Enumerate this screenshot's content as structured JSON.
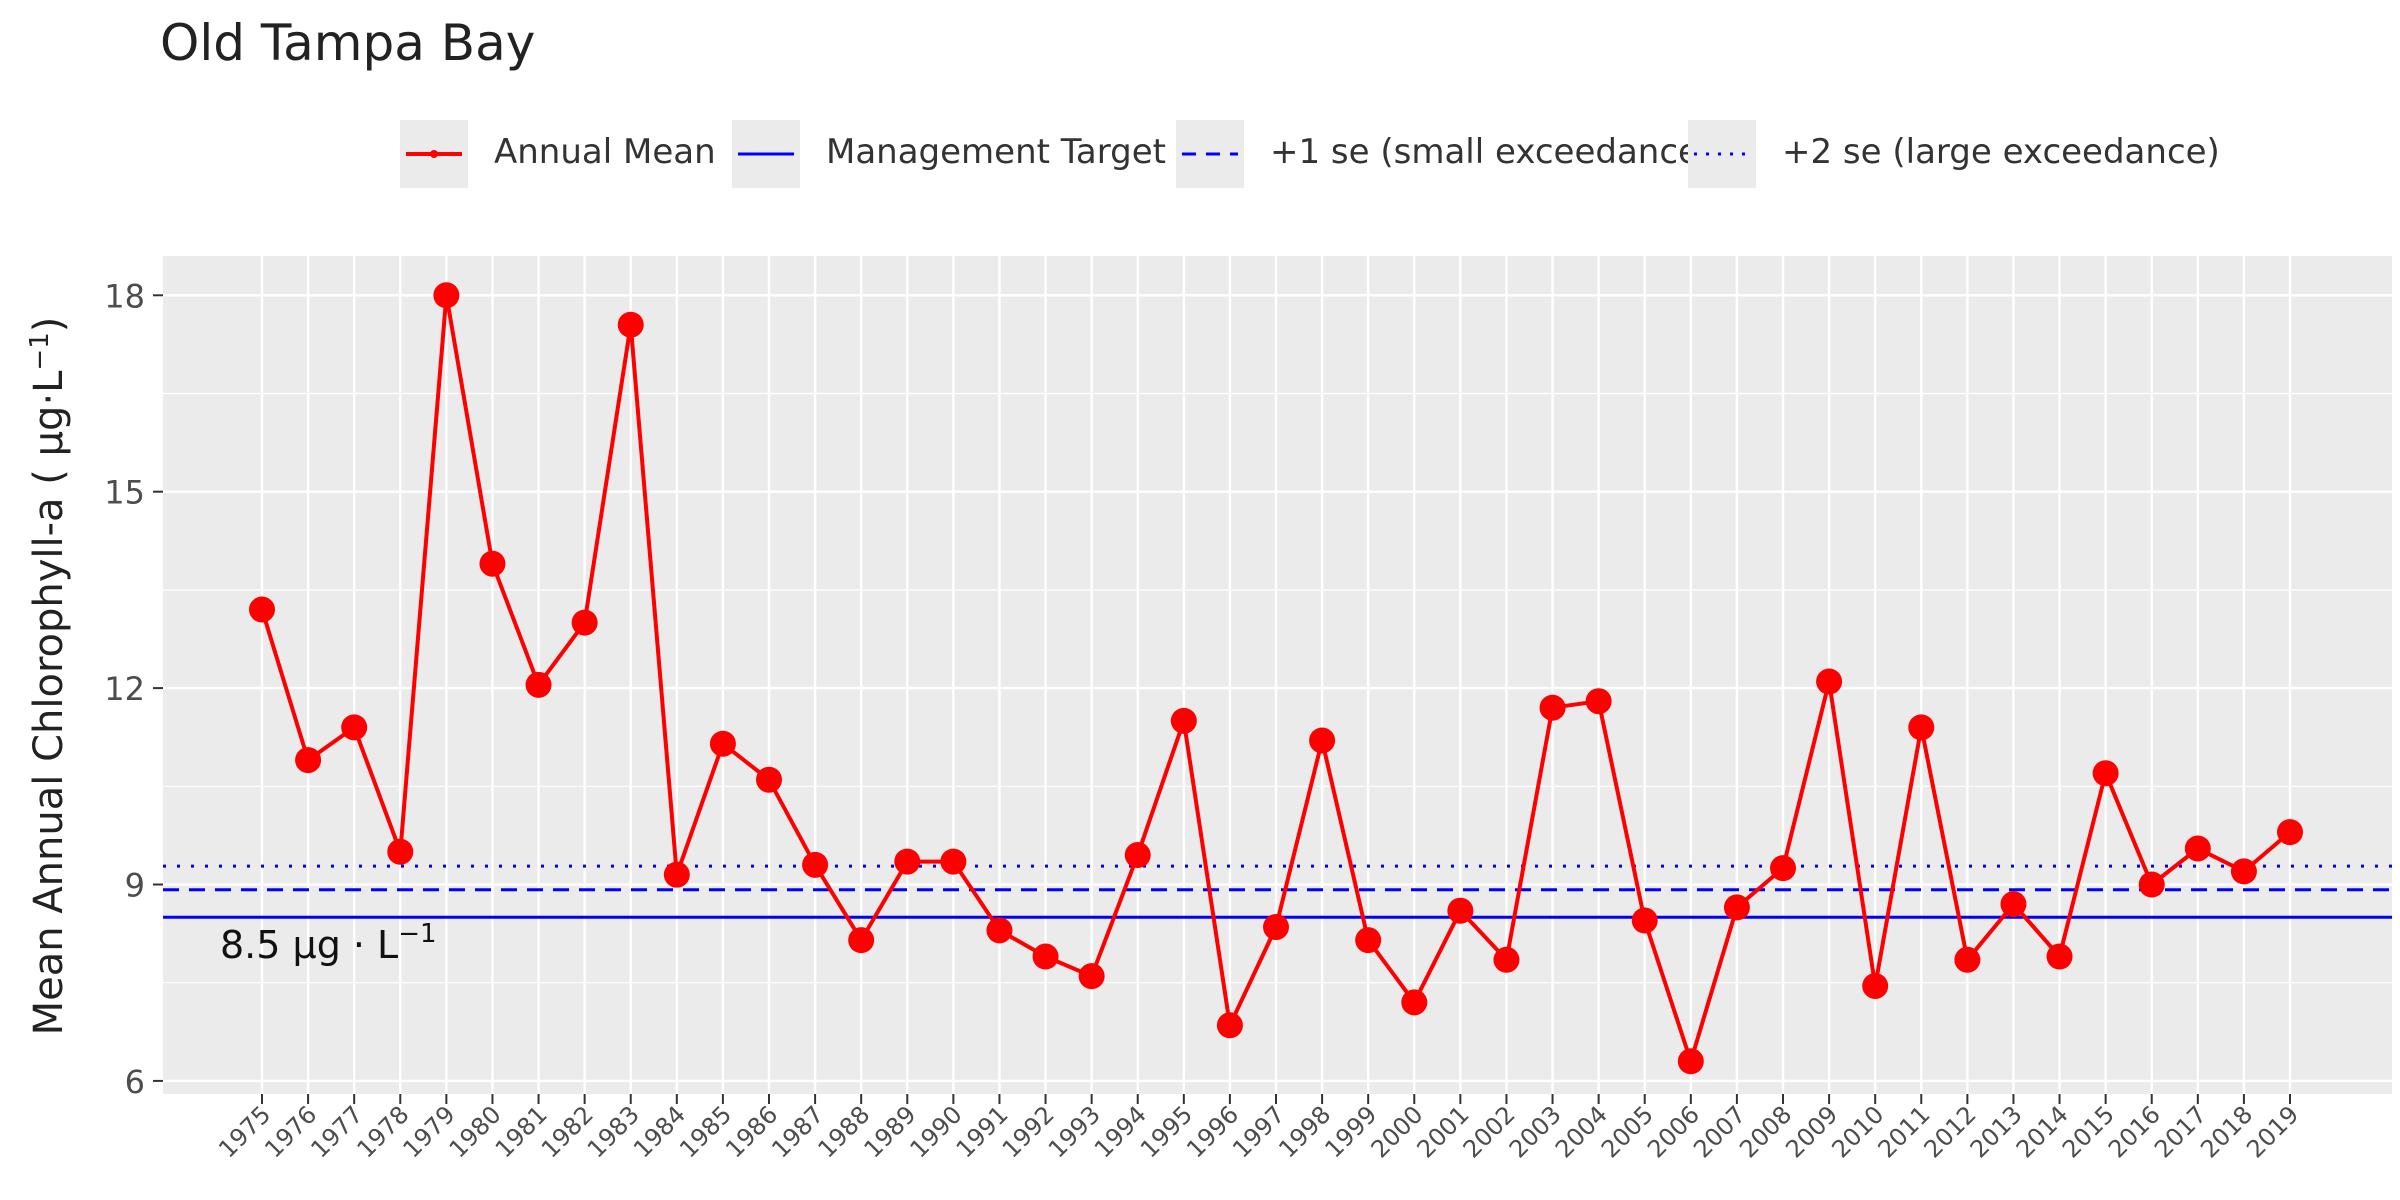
{
  "title": "Old Tampa Bay",
  "legend": {
    "annual_mean": "Annual Mean",
    "management_target": "Management Target",
    "se1": "+1 se (small exceedance)",
    "se2": "+2 se (large exceedance)"
  },
  "colors": {
    "annual_mean": "#ff0000",
    "target": "#0000ff",
    "panel_bg": "#ebebeb",
    "grid": "#ffffff"
  },
  "chart_data": {
    "type": "line",
    "title": "Old Tampa Bay",
    "ylabel_main": "Mean Annual Chlorophyll-a ( µg·L",
    "ylabel_sup": "−1",
    "ylabel_end": ")",
    "xlabel": "",
    "ylim": [
      5.8,
      18.6
    ],
    "yticks": [
      6,
      9,
      12,
      15,
      18
    ],
    "x": [
      1975,
      1976,
      1977,
      1978,
      1979,
      1980,
      1981,
      1982,
      1983,
      1984,
      1985,
      1986,
      1987,
      1988,
      1989,
      1990,
      1991,
      1992,
      1993,
      1994,
      1995,
      1996,
      1997,
      1998,
      1999,
      2000,
      2001,
      2002,
      2003,
      2004,
      2005,
      2006,
      2007,
      2008,
      2009,
      2010,
      2011,
      2012,
      2013,
      2014,
      2015,
      2016,
      2017,
      2018,
      2019
    ],
    "series": [
      {
        "name": "Annual Mean",
        "values": [
          13.2,
          10.9,
          11.4,
          9.5,
          18.0,
          13.9,
          12.05,
          13.0,
          17.55,
          9.15,
          11.15,
          10.6,
          9.3,
          8.15,
          9.35,
          9.35,
          8.3,
          7.9,
          7.6,
          9.45,
          11.5,
          6.85,
          8.35,
          11.2,
          8.15,
          7.2,
          8.6,
          7.85,
          11.7,
          11.8,
          8.45,
          6.3,
          8.65,
          9.25,
          12.1,
          7.45,
          11.4,
          7.85,
          8.7,
          7.9,
          10.7,
          9.0,
          9.55,
          9.2,
          9.8
        ]
      }
    ],
    "hlines": {
      "target": 8.5,
      "se1": 8.92,
      "se2": 9.28
    },
    "annotation": {
      "text_main": "8.5 µg · L",
      "text_sup": "−1"
    },
    "grid": true,
    "legend_position": "top"
  }
}
